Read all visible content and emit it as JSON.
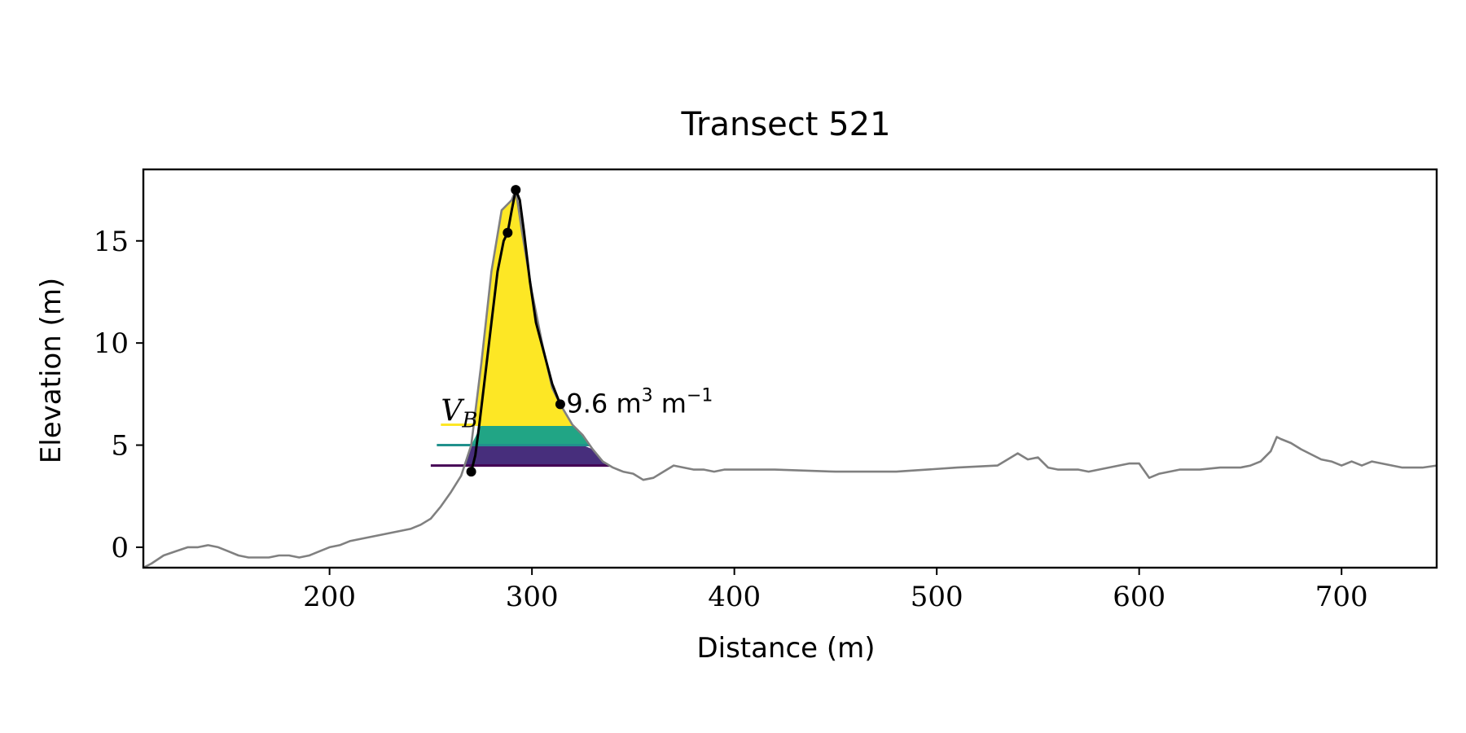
{
  "chart_data": {
    "type": "line",
    "title": "Transect 521",
    "xlabel": "Distance (m)",
    "ylabel": "Elevation (m)",
    "xlim": [
      108,
      747
    ],
    "ylim": [
      -1.0,
      18.5
    ],
    "xticks": [
      200,
      300,
      400,
      500,
      600,
      700
    ],
    "yticks": [
      0,
      5,
      10,
      15
    ],
    "grid": false,
    "legend": "none",
    "colors": {
      "profile": "#808080",
      "dune": "#000000",
      "levels": [
        "#fde725",
        "#21a585",
        "#472e7c"
      ],
      "level_lines": [
        "#fde725",
        "#21918c",
        "#440154"
      ]
    },
    "series": [
      {
        "role": "profile",
        "x": [
          108,
          112,
          118,
          124,
          130,
          135,
          140,
          145,
          150,
          155,
          160,
          165,
          170,
          175,
          180,
          185,
          190,
          195,
          200,
          205,
          210,
          215,
          220,
          225,
          230,
          235,
          240,
          245,
          250,
          255,
          260,
          265,
          270,
          275,
          280,
          285,
          290,
          292,
          295,
          300,
          305,
          310,
          314,
          320,
          325,
          330,
          335,
          340,
          345,
          350,
          355,
          360,
          365,
          370,
          375,
          380,
          385,
          390,
          395,
          400,
          420,
          450,
          480,
          510,
          530,
          535,
          540,
          545,
          550,
          555,
          560,
          570,
          575,
          580,
          585,
          590,
          595,
          600,
          605,
          610,
          620,
          630,
          640,
          650,
          655,
          660,
          665,
          668,
          670,
          675,
          680,
          690,
          695,
          700,
          705,
          710,
          715,
          720,
          730,
          740,
          747
        ],
        "y": [
          -1.0,
          -0.8,
          -0.4,
          -0.2,
          0.0,
          0.0,
          0.1,
          0.0,
          -0.2,
          -0.4,
          -0.5,
          -0.5,
          -0.5,
          -0.4,
          -0.4,
          -0.5,
          -0.4,
          -0.2,
          0.0,
          0.1,
          0.3,
          0.4,
          0.5,
          0.6,
          0.7,
          0.8,
          0.9,
          1.1,
          1.4,
          2.0,
          2.7,
          3.5,
          5.0,
          9.0,
          13.5,
          16.5,
          17.0,
          17.5,
          15.5,
          12.5,
          10.0,
          7.8,
          7.0,
          6.0,
          5.5,
          4.8,
          4.2,
          3.9,
          3.7,
          3.6,
          3.3,
          3.4,
          3.7,
          4.0,
          3.9,
          3.8,
          3.8,
          3.7,
          3.8,
          3.8,
          3.8,
          3.7,
          3.7,
          3.9,
          4.0,
          4.3,
          4.6,
          4.3,
          4.4,
          3.9,
          3.8,
          3.8,
          3.7,
          3.8,
          3.9,
          4.0,
          4.1,
          4.1,
          3.4,
          3.6,
          3.8,
          3.8,
          3.9,
          3.9,
          4.0,
          4.2,
          4.7,
          5.4,
          5.3,
          5.1,
          4.8,
          4.3,
          4.2,
          4.0,
          4.2,
          4.0,
          4.2,
          4.1,
          3.9,
          3.9,
          4.0
        ]
      },
      {
        "role": "dune",
        "x": [
          270,
          272,
          274,
          277,
          280,
          283,
          286,
          288,
          290,
          292,
          294,
          296,
          299,
          302,
          306,
          310,
          314
        ],
        "y": [
          3.7,
          4.5,
          6.0,
          8.5,
          11.0,
          13.5,
          15.0,
          15.4,
          16.5,
          17.5,
          17.0,
          15.5,
          13.0,
          11.0,
          9.5,
          8.0,
          7.0
        ]
      }
    ],
    "points": [
      {
        "x": 270,
        "y": 3.7
      },
      {
        "x": 288,
        "y": 15.4
      },
      {
        "x": 292,
        "y": 17.5
      },
      {
        "x": 314,
        "y": 7.0
      }
    ],
    "levels": [
      {
        "elevation": 6.0,
        "x_start": 255,
        "top": 6.0,
        "bottom": 5.0
      },
      {
        "elevation": 5.0,
        "x_start": 253,
        "top": 5.0,
        "bottom": 4.0
      },
      {
        "elevation": 4.0,
        "x_start": 250,
        "top": 4.0,
        "bottom": 3.9
      }
    ],
    "annotations": {
      "vb_label": {
        "main": "V",
        "sub": "B",
        "x": 255,
        "y": 6.2
      },
      "volume_label": {
        "value": "9.6 m",
        "unit_sup": "3",
        "unit2": " m",
        "unit2_sup": "−1",
        "x": 317,
        "y": 6.6
      }
    }
  }
}
